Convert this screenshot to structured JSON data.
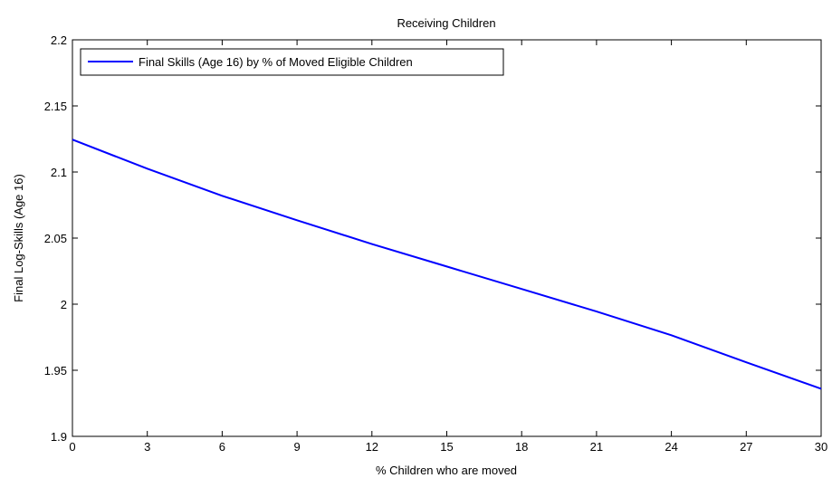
{
  "chart_data": {
    "type": "line",
    "title": "Receiving Children",
    "xlabel": "% Children who are moved",
    "ylabel": "Final Log-Skills (Age 16)",
    "xlim": [
      0,
      30
    ],
    "ylim": [
      1.9,
      2.2
    ],
    "xticks": [
      0,
      3,
      6,
      9,
      12,
      15,
      18,
      21,
      24,
      27,
      30
    ],
    "xtick_labels": [
      "0",
      "3",
      "6",
      "9",
      "12",
      "15",
      "18",
      "21",
      "24",
      "27",
      "30"
    ],
    "yticks": [
      1.9,
      1.95,
      2.0,
      2.05,
      2.1,
      2.15,
      2.2
    ],
    "ytick_labels": [
      "1.9",
      "1.95",
      "2",
      "2.05",
      "2.1",
      "2.15",
      "2.2"
    ],
    "grid": false,
    "legend_position": "top-left",
    "series": [
      {
        "name": "Final Skills (Age 16) by % of Moved Eligible Children",
        "color": "#0000ff",
        "x": [
          0,
          3,
          6,
          9,
          12,
          15,
          18,
          21,
          24,
          27,
          30
        ],
        "y": [
          2.1245,
          2.1025,
          2.082,
          2.0635,
          2.0455,
          2.0285,
          2.0115,
          1.9945,
          1.9765,
          1.956,
          1.936
        ]
      }
    ]
  }
}
